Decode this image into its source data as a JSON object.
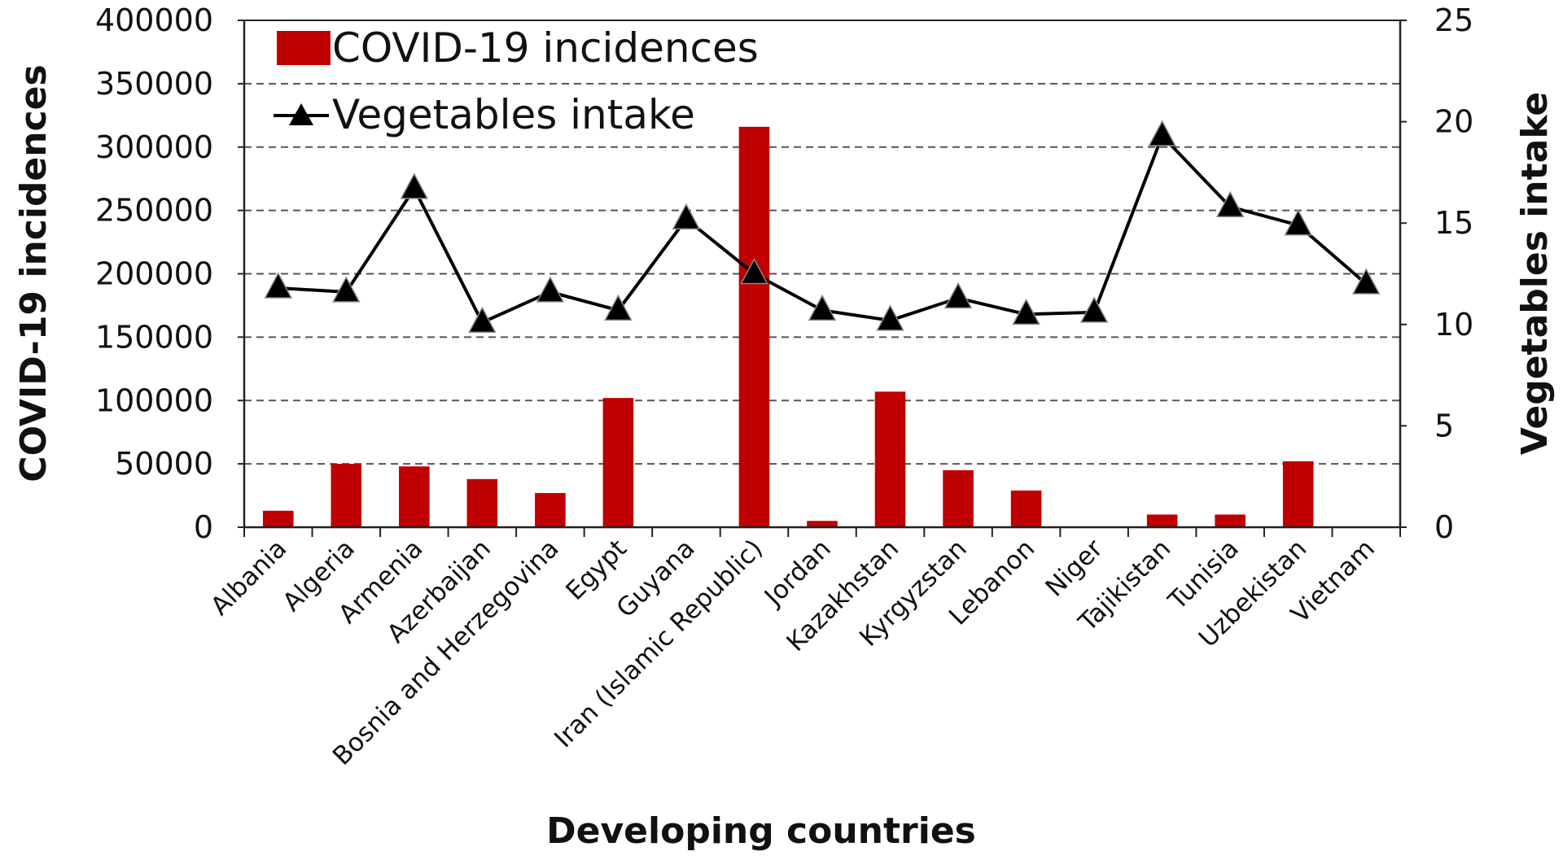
{
  "chart_data": {
    "type": "bar",
    "xlabel": "Developing countries",
    "categories": [
      "Albania",
      "Algeria",
      "Armenia",
      "Azerbaijan",
      "Bosnia and Herzegovina",
      "Egypt",
      "Guyana",
      "Iran (Islamic Republic)",
      "Jordan",
      "Kazakhstan",
      "Kyrgyzstan",
      "Lebanon",
      "Niger",
      "Tajikistan",
      "Tunisia",
      "Uzbekistan",
      "Vietnam"
    ],
    "series": [
      {
        "name": "COVID-19 incidences",
        "type": "bar",
        "axis": "left",
        "color": "#c00000",
        "values": [
          13000,
          50000,
          48000,
          38000,
          27000,
          102000,
          0,
          316000,
          5000,
          107000,
          45000,
          29000,
          0,
          10000,
          10000,
          52000,
          0
        ]
      },
      {
        "name": "Vegetables intake",
        "type": "line",
        "axis": "right",
        "marker": "triangle",
        "color": "#000000",
        "values": [
          11.8,
          11.6,
          16.7,
          10.1,
          11.6,
          10.7,
          15.2,
          12.5,
          10.7,
          10.2,
          11.3,
          10.5,
          10.6,
          19.3,
          15.8,
          14.9,
          12.0
        ]
      }
    ],
    "y_left": {
      "label": "COVID-19 incidences",
      "ylim": [
        0,
        400000
      ],
      "ticks": [
        "0",
        "50000",
        "100000",
        "150000",
        "200000",
        "250000",
        "300000",
        "350000",
        "400000"
      ]
    },
    "y_right": {
      "label": "Vegetables intake",
      "ylim": [
        0,
        25
      ],
      "ticks": [
        "0",
        "5",
        "10",
        "15",
        "20",
        "25"
      ]
    },
    "grid": true,
    "legend": "top-left"
  }
}
